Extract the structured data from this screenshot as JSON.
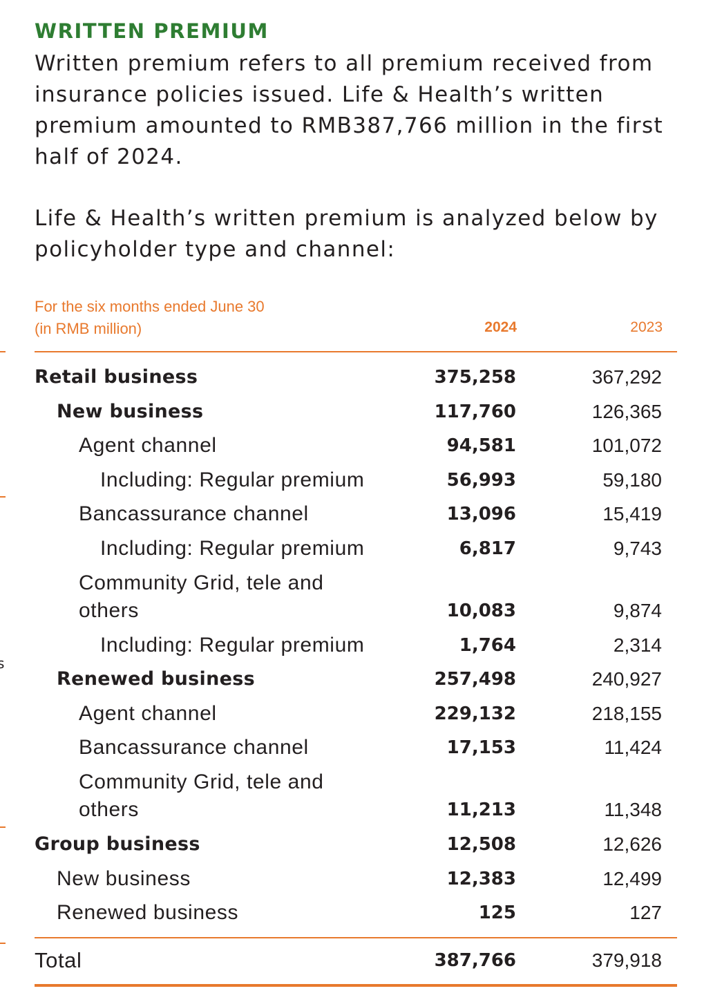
{
  "section": {
    "heading": "WRITTEN PREMIUM",
    "paragraph1": "Written premium refers to all premium received from insurance policies issued. Life & Health’s written premium amounted to RMB387,766 million in the first half of 2024.",
    "paragraph2": "Life & Health’s written premium is analyzed below by policyholder type and channel:"
  },
  "table": {
    "period_label": "For the six months ended June 30\n(in RMB million)",
    "col_current": "2024",
    "col_prior": "2023",
    "rows": [
      {
        "label": "Retail business",
        "v2024": "375,258",
        "v2023": "367,292"
      },
      {
        "label": "New business",
        "v2024": "117,760",
        "v2023": "126,365"
      },
      {
        "label": "Agent channel",
        "v2024": "94,581",
        "v2023": "101,072"
      },
      {
        "label": "Including: Regular premium",
        "v2024": "56,993",
        "v2023": "59,180"
      },
      {
        "label": "Bancassurance channel",
        "v2024": "13,096",
        "v2023": "15,419"
      },
      {
        "label": "Including: Regular premium",
        "v2024": "6,817",
        "v2023": "9,743"
      },
      {
        "label": "Community Grid, tele and\n others",
        "v2024": "10,083",
        "v2023": "9,874"
      },
      {
        "label": "Including: Regular premium",
        "v2024": "1,764",
        "v2023": "2,314"
      },
      {
        "label": "Renewed business",
        "v2024": "257,498",
        "v2023": "240,927"
      },
      {
        "label": "Agent channel",
        "v2024": "229,132",
        "v2023": "218,155"
      },
      {
        "label": "Bancassurance channel",
        "v2024": "17,153",
        "v2023": "11,424"
      },
      {
        "label": "Community Grid, tele and\n others",
        "v2024": "11,213",
        "v2023": "11,348"
      },
      {
        "label": "Group business",
        "v2024": "12,508",
        "v2023": "12,626"
      },
      {
        "label": "New business",
        "v2024": "12,383",
        "v2023": "12,499"
      },
      {
        "label": "Renewed business",
        "v2024": "125",
        "v2023": "127"
      }
    ],
    "total": {
      "label": "Total",
      "v2024": "387,766",
      "v2023": "379,918"
    }
  },
  "margin": {
    "glyph": "s"
  },
  "colors": {
    "heading": "#2e7d32",
    "accent": "#e8792d",
    "text": "#231f20"
  }
}
